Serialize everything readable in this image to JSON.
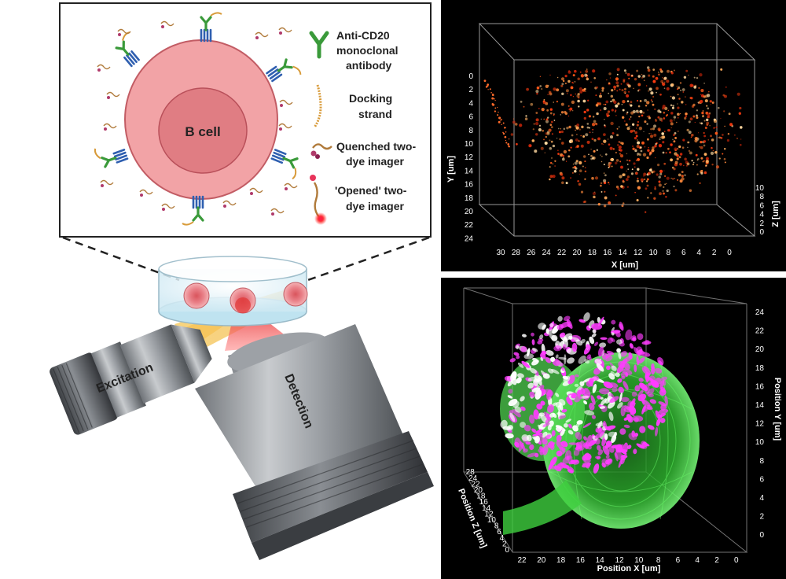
{
  "inset": {
    "cell_label": "B cell",
    "legend": [
      {
        "line1": "Anti-CD20",
        "line2": "monoclonal",
        "line3": "antibody",
        "icon": "antibody-icon"
      },
      {
        "line1": "Docking",
        "line2": "strand",
        "icon": "docking-strand-icon"
      },
      {
        "line1": "Quenched two-",
        "line2": "dye imager",
        "icon": "quenched-imager-icon"
      },
      {
        "line1": "'Opened' two-",
        "line2": "dye imager",
        "icon": "opened-imager-icon"
      }
    ]
  },
  "microscope": {
    "excitation_label": "Excitation",
    "detection_label": "Detection"
  },
  "panel_top": {
    "y_title": "Y [um]",
    "x_title": "X [um]",
    "z_title": "Z [um]",
    "y_ticks": [
      "0",
      "2",
      "4",
      "6",
      "8",
      "10",
      "12",
      "14",
      "16",
      "18",
      "20",
      "22",
      "24"
    ],
    "x_ticks": [
      "30",
      "28",
      "26",
      "24",
      "22",
      "20",
      "18",
      "16",
      "14",
      "12",
      "10",
      "8",
      "6",
      "4",
      "2",
      "0"
    ],
    "z_ticks": [
      "0",
      "2",
      "4",
      "6",
      "8",
      "10"
    ]
  },
  "panel_bottom": {
    "y_title": "Position Y [um]",
    "x_title": "Position X [um]",
    "z_title": "Position Z [um]",
    "y_ticks": [
      "24",
      "22",
      "20",
      "18",
      "16",
      "14",
      "12",
      "10",
      "8",
      "6",
      "4",
      "2",
      "0"
    ],
    "x_ticks": [
      "22",
      "20",
      "18",
      "16",
      "14",
      "12",
      "10",
      "8",
      "6",
      "4",
      "2",
      "0"
    ],
    "z_ticks": [
      "0",
      "2",
      "4",
      "6",
      "8",
      "10",
      "12",
      "14",
      "16",
      "18",
      "20",
      "22",
      "24",
      "28"
    ]
  },
  "colors": {
    "cell_outer": "#f2a3a6",
    "cell_nucleus": "#e07d83",
    "antibody_green": "#3a9a3a",
    "receptor_blue": "#2f5fb0",
    "excitation_beam": "#f2c14e",
    "detection_beam": "#e84a4a",
    "hot_signal": "#ff8a3c",
    "green_signal": "#46e046",
    "magenta_signal": "#ff3cff"
  }
}
